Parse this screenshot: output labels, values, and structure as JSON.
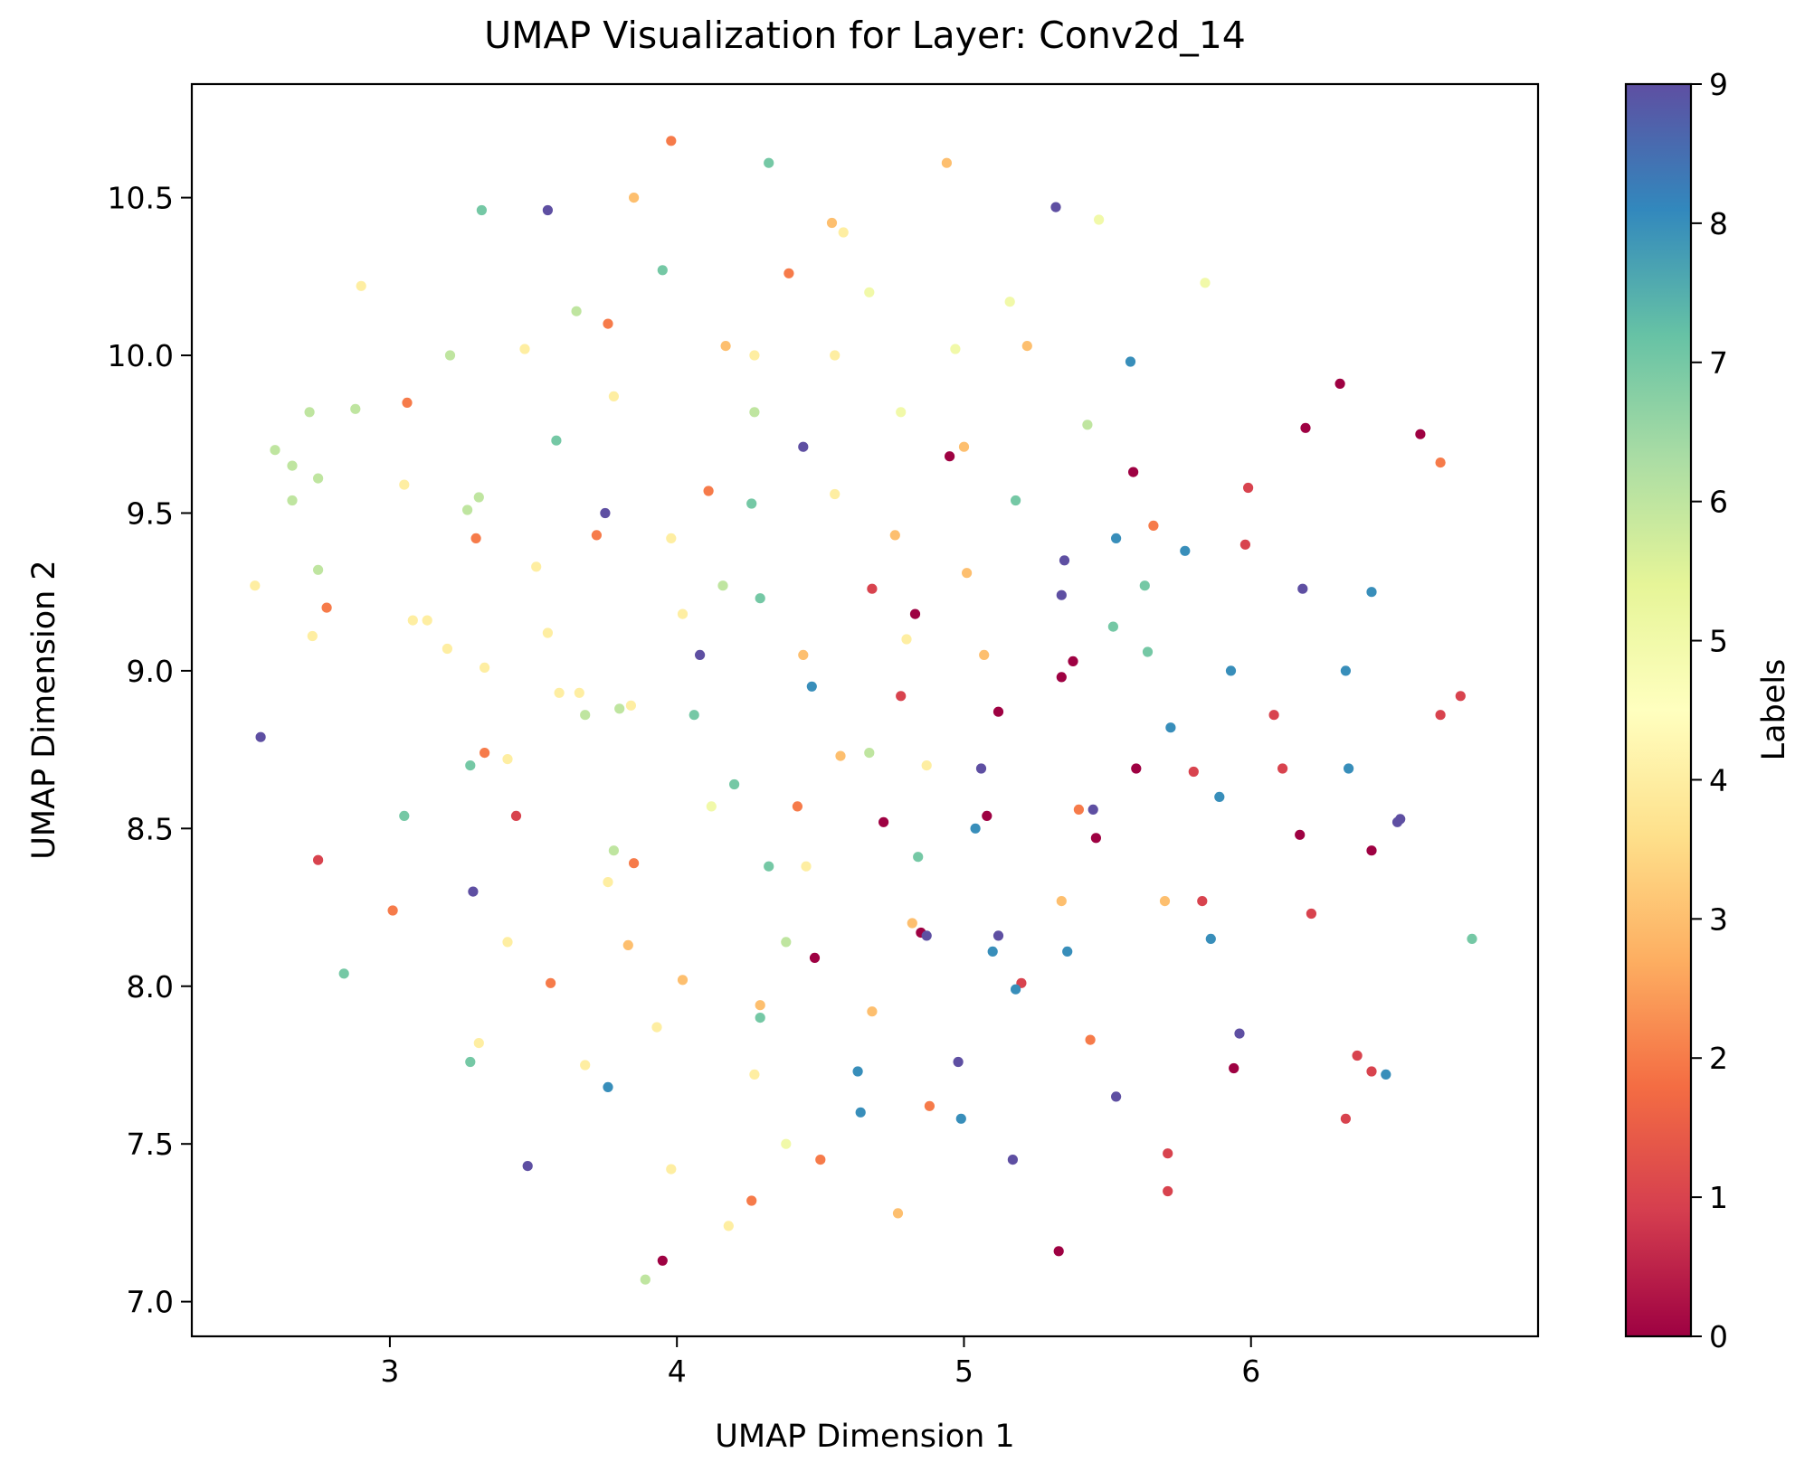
{
  "chart_data": {
    "type": "scatter",
    "title": "UMAP Visualization for Layer: Conv2d_14",
    "xlabel": "UMAP Dimension 1",
    "ylabel": "UMAP Dimension 2",
    "xlim": [
      2.31,
      7.0
    ],
    "ylim": [
      6.89,
      10.86
    ],
    "x_ticks": [
      "3",
      "4",
      "5",
      "6"
    ],
    "y_ticks": [
      "7.0",
      "7.5",
      "8.0",
      "8.5",
      "9.0",
      "9.5",
      "10.0",
      "10.5"
    ],
    "grid": false,
    "colorbar": {
      "label": "Labels",
      "range": [
        0,
        9
      ],
      "ticks": [
        "0",
        "1",
        "2",
        "3",
        "4",
        "5",
        "6",
        "7",
        "8",
        "9"
      ],
      "colormap": "Spectral",
      "colormap_stops": [
        "#9e0142",
        "#d53e4f",
        "#f46d43",
        "#fdae61",
        "#fee08b",
        "#ffffbf",
        "#e6f598",
        "#abdda4",
        "#66c2a5",
        "#3288bd",
        "#5e4fa2"
      ]
    },
    "points": [
      [
        3.98,
        10.68,
        2
      ],
      [
        4.32,
        10.61,
        7
      ],
      [
        4.94,
        10.61,
        3
      ],
      [
        3.32,
        10.46,
        7
      ],
      [
        3.55,
        10.46,
        9
      ],
      [
        3.85,
        10.5,
        3
      ],
      [
        4.54,
        10.42,
        3
      ],
      [
        4.58,
        10.39,
        4
      ],
      [
        5.32,
        10.47,
        9
      ],
      [
        5.47,
        10.43,
        5
      ],
      [
        2.9,
        10.22,
        4
      ],
      [
        3.95,
        10.27,
        7
      ],
      [
        4.39,
        10.26,
        2
      ],
      [
        4.67,
        10.2,
        5
      ],
      [
        5.16,
        10.17,
        5
      ],
      [
        5.84,
        10.23,
        5
      ],
      [
        3.65,
        10.14,
        6
      ],
      [
        3.76,
        10.1,
        2
      ],
      [
        3.21,
        10.0,
        6
      ],
      [
        3.47,
        10.02,
        4
      ],
      [
        4.17,
        10.03,
        3
      ],
      [
        4.27,
        10.0,
        4
      ],
      [
        4.55,
        10.0,
        4
      ],
      [
        4.97,
        10.02,
        5
      ],
      [
        5.22,
        10.03,
        3
      ],
      [
        5.58,
        9.98,
        8
      ],
      [
        6.31,
        9.91,
        0
      ],
      [
        2.72,
        9.82,
        6
      ],
      [
        2.88,
        9.83,
        6
      ],
      [
        3.06,
        9.85,
        2
      ],
      [
        3.78,
        9.87,
        4
      ],
      [
        4.27,
        9.82,
        6
      ],
      [
        4.78,
        9.82,
        5
      ],
      [
        5.43,
        9.78,
        6
      ],
      [
        6.19,
        9.77,
        0
      ],
      [
        6.59,
        9.75,
        0
      ],
      [
        2.6,
        9.7,
        6
      ],
      [
        3.58,
        9.73,
        7
      ],
      [
        4.44,
        9.71,
        9
      ],
      [
        4.95,
        9.68,
        0
      ],
      [
        5.0,
        9.71,
        3
      ],
      [
        2.66,
        9.65,
        6
      ],
      [
        6.66,
        9.66,
        2
      ],
      [
        2.75,
        9.61,
        6
      ],
      [
        3.05,
        9.59,
        4
      ],
      [
        5.59,
        9.63,
        0
      ],
      [
        2.66,
        9.54,
        6
      ],
      [
        3.31,
        9.55,
        6
      ],
      [
        4.11,
        9.57,
        2
      ],
      [
        4.55,
        9.56,
        4
      ],
      [
        5.18,
        9.54,
        7
      ],
      [
        5.99,
        9.58,
        1
      ],
      [
        3.27,
        9.51,
        6
      ],
      [
        3.75,
        9.5,
        9
      ],
      [
        4.26,
        9.53,
        7
      ],
      [
        3.3,
        9.42,
        2
      ],
      [
        3.72,
        9.43,
        2
      ],
      [
        3.98,
        9.42,
        4
      ],
      [
        4.76,
        9.43,
        3
      ],
      [
        5.53,
        9.42,
        8
      ],
      [
        5.66,
        9.46,
        2
      ],
      [
        5.77,
        9.38,
        8
      ],
      [
        5.98,
        9.4,
        1
      ],
      [
        3.51,
        9.33,
        4
      ],
      [
        2.75,
        9.32,
        6
      ],
      [
        5.01,
        9.31,
        3
      ],
      [
        5.35,
        9.35,
        9
      ],
      [
        2.53,
        9.27,
        4
      ],
      [
        4.16,
        9.27,
        6
      ],
      [
        4.68,
        9.26,
        1
      ],
      [
        5.63,
        9.27,
        7
      ],
      [
        6.18,
        9.26,
        9
      ],
      [
        6.42,
        9.25,
        8
      ],
      [
        2.78,
        9.2,
        2
      ],
      [
        4.02,
        9.18,
        4
      ],
      [
        4.29,
        9.23,
        7
      ],
      [
        4.83,
        9.18,
        0
      ],
      [
        5.34,
        9.24,
        9
      ],
      [
        3.08,
        9.16,
        4
      ],
      [
        3.13,
        9.16,
        4
      ],
      [
        2.73,
        9.11,
        4
      ],
      [
        3.55,
        9.12,
        4
      ],
      [
        4.8,
        9.1,
        4
      ],
      [
        5.52,
        9.14,
        7
      ],
      [
        3.2,
        9.07,
        4
      ],
      [
        4.08,
        9.05,
        9
      ],
      [
        4.44,
        9.05,
        3
      ],
      [
        5.07,
        9.05,
        3
      ],
      [
        5.64,
        9.06,
        7
      ],
      [
        3.33,
        9.01,
        4
      ],
      [
        5.38,
        9.03,
        0
      ],
      [
        5.34,
        8.98,
        0
      ],
      [
        5.93,
        9.0,
        8
      ],
      [
        6.33,
        9.0,
        8
      ],
      [
        3.59,
        8.93,
        4
      ],
      [
        3.66,
        8.93,
        4
      ],
      [
        4.47,
        8.95,
        8
      ],
      [
        3.84,
        8.89,
        4
      ],
      [
        3.8,
        8.88,
        6
      ],
      [
        3.68,
        8.86,
        6
      ],
      [
        4.06,
        8.86,
        7
      ],
      [
        4.78,
        8.92,
        1
      ],
      [
        5.12,
        8.87,
        0
      ],
      [
        6.08,
        8.86,
        1
      ],
      [
        6.66,
        8.86,
        1
      ],
      [
        6.73,
        8.92,
        1
      ],
      [
        2.55,
        8.79,
        9
      ],
      [
        5.72,
        8.82,
        8
      ],
      [
        3.33,
        8.74,
        2
      ],
      [
        3.41,
        8.72,
        4
      ],
      [
        4.57,
        8.73,
        3
      ],
      [
        4.67,
        8.74,
        6
      ],
      [
        3.28,
        8.7,
        7
      ],
      [
        4.87,
        8.7,
        4
      ],
      [
        5.06,
        8.69,
        9
      ],
      [
        5.6,
        8.69,
        0
      ],
      [
        5.8,
        8.68,
        1
      ],
      [
        6.11,
        8.69,
        1
      ],
      [
        6.34,
        8.69,
        8
      ],
      [
        4.2,
        8.64,
        7
      ],
      [
        5.89,
        8.6,
        8
      ],
      [
        4.12,
        8.57,
        5
      ],
      [
        4.42,
        8.57,
        2
      ],
      [
        5.4,
        8.56,
        2
      ],
      [
        5.45,
        8.56,
        9
      ],
      [
        3.05,
        8.54,
        7
      ],
      [
        3.44,
        8.54,
        1
      ],
      [
        5.08,
        8.54,
        0
      ],
      [
        6.51,
        8.52,
        9
      ],
      [
        4.72,
        8.52,
        0
      ],
      [
        5.04,
        8.5,
        8
      ],
      [
        5.46,
        8.47,
        0
      ],
      [
        6.17,
        8.48,
        0
      ],
      [
        6.52,
        8.53,
        9
      ],
      [
        3.78,
        8.43,
        6
      ],
      [
        4.84,
        8.41,
        7
      ],
      [
        6.42,
        8.43,
        0
      ],
      [
        2.75,
        8.4,
        1
      ],
      [
        3.85,
        8.39,
        2
      ],
      [
        4.32,
        8.38,
        7
      ],
      [
        4.45,
        8.38,
        4
      ],
      [
        3.76,
        8.33,
        4
      ],
      [
        3.29,
        8.3,
        9
      ],
      [
        5.34,
        8.27,
        3
      ],
      [
        5.7,
        8.27,
        3
      ],
      [
        5.83,
        8.27,
        1
      ],
      [
        3.01,
        8.24,
        2
      ],
      [
        6.21,
        8.23,
        1
      ],
      [
        4.82,
        8.2,
        3
      ],
      [
        4.85,
        8.17,
        0
      ],
      [
        4.87,
        8.16,
        9
      ],
      [
        5.12,
        8.16,
        9
      ],
      [
        3.41,
        8.14,
        4
      ],
      [
        4.38,
        8.14,
        6
      ],
      [
        5.86,
        8.15,
        8
      ],
      [
        6.77,
        8.15,
        7
      ],
      [
        3.83,
        8.13,
        3
      ],
      [
        5.1,
        8.11,
        8
      ],
      [
        5.36,
        8.11,
        8
      ],
      [
        4.48,
        8.09,
        0
      ],
      [
        2.84,
        8.04,
        7
      ],
      [
        3.56,
        8.01,
        2
      ],
      [
        4.02,
        8.02,
        3
      ],
      [
        5.2,
        8.01,
        1
      ],
      [
        5.18,
        7.99,
        8
      ],
      [
        4.29,
        7.94,
        3
      ],
      [
        4.29,
        7.9,
        7
      ],
      [
        4.68,
        7.92,
        3
      ],
      [
        3.93,
        7.87,
        4
      ],
      [
        5.96,
        7.85,
        9
      ],
      [
        3.31,
        7.82,
        4
      ],
      [
        5.44,
        7.83,
        2
      ],
      [
        6.37,
        7.78,
        1
      ],
      [
        3.28,
        7.76,
        7
      ],
      [
        3.68,
        7.75,
        4
      ],
      [
        4.98,
        7.76,
        9
      ],
      [
        5.94,
        7.74,
        0
      ],
      [
        4.63,
        7.73,
        8
      ],
      [
        6.42,
        7.73,
        1
      ],
      [
        6.47,
        7.72,
        8
      ],
      [
        4.27,
        7.72,
        4
      ],
      [
        3.76,
        7.68,
        8
      ],
      [
        5.53,
        7.65,
        9
      ],
      [
        4.88,
        7.62,
        2
      ],
      [
        4.64,
        7.6,
        8
      ],
      [
        4.99,
        7.58,
        8
      ],
      [
        6.33,
        7.58,
        1
      ],
      [
        4.38,
        7.5,
        5
      ],
      [
        5.71,
        7.47,
        1
      ],
      [
        4.5,
        7.45,
        2
      ],
      [
        5.17,
        7.45,
        9
      ],
      [
        3.48,
        7.43,
        9
      ],
      [
        3.98,
        7.42,
        4
      ],
      [
        5.71,
        7.35,
        1
      ],
      [
        4.26,
        7.32,
        2
      ],
      [
        4.77,
        7.28,
        3
      ],
      [
        4.18,
        7.24,
        4
      ],
      [
        5.33,
        7.16,
        0
      ],
      [
        3.95,
        7.13,
        0
      ],
      [
        3.89,
        7.07,
        6
      ]
    ]
  }
}
